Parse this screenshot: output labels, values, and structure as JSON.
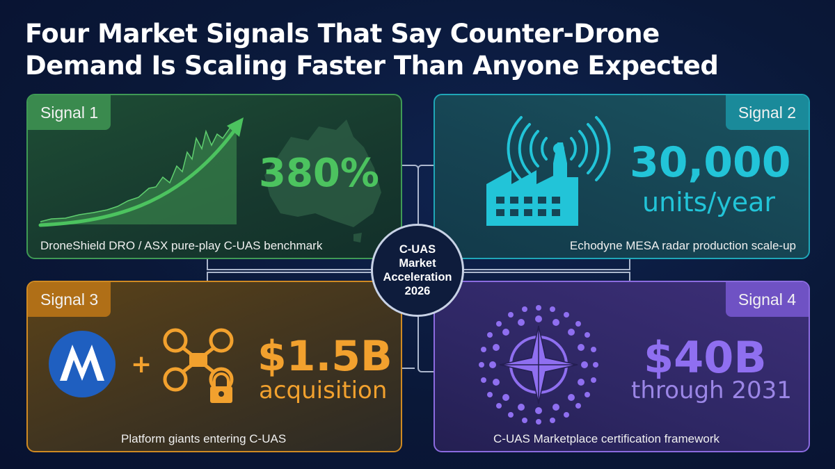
{
  "title": {
    "line1": "Four Market Signals That Say Counter-Drone",
    "line2": "Demand Is Scaling Faster Than Anyone Expected"
  },
  "hub": {
    "text": "C-UAS Market Acceleration 2026"
  },
  "signals": [
    {
      "tag": "Signal 1",
      "value": "380%",
      "subvalue": "",
      "caption": "DroneShield DRO / ASX pure-play C-UAS benchmark",
      "icons": [
        "stock-growth-chart-icon",
        "australia-map-icon"
      ],
      "accent": "#4cc35f"
    },
    {
      "tag": "Signal 2",
      "value": "30,000",
      "subvalue": "units/year",
      "caption": "Echodyne MESA radar production scale-up",
      "icons": [
        "factory-icon",
        "radar-signal-icon"
      ],
      "accent": "#22c4d8"
    },
    {
      "tag": "Signal 3",
      "value": "$1.5B",
      "subvalue": "acquisition",
      "caption": "Platform giants entering C-UAS",
      "icons": [
        "motorola-logo-icon",
        "plus-icon",
        "drone-icon",
        "lock-icon"
      ],
      "accent": "#f2a12e"
    },
    {
      "tag": "Signal 4",
      "value": "$40B",
      "subvalue": "through 2031",
      "caption": "C-UAS Marketplace certification framework",
      "icons": [
        "nato-compass-star-icon"
      ],
      "accent": "#8f6ff0"
    }
  ],
  "plus_symbol": "+"
}
